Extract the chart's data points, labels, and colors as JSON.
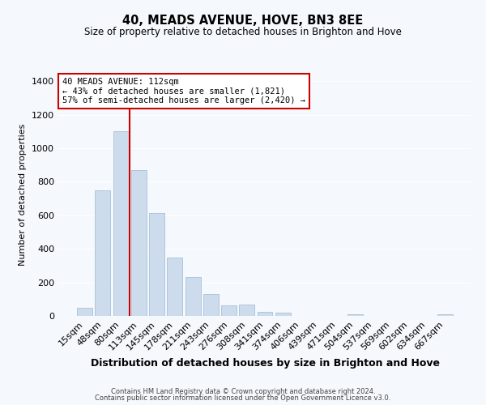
{
  "title": "40, MEADS AVENUE, HOVE, BN3 8EE",
  "subtitle": "Size of property relative to detached houses in Brighton and Hove",
  "xlabel": "Distribution of detached houses by size in Brighton and Hove",
  "ylabel": "Number of detached properties",
  "bar_labels": [
    "15sqm",
    "48sqm",
    "80sqm",
    "113sqm",
    "145sqm",
    "178sqm",
    "211sqm",
    "243sqm",
    "276sqm",
    "308sqm",
    "341sqm",
    "374sqm",
    "406sqm",
    "439sqm",
    "471sqm",
    "504sqm",
    "537sqm",
    "569sqm",
    "602sqm",
    "634sqm",
    "667sqm"
  ],
  "bar_values": [
    50,
    750,
    1100,
    870,
    615,
    350,
    230,
    130,
    65,
    70,
    25,
    20,
    0,
    0,
    0,
    10,
    0,
    0,
    0,
    0,
    10
  ],
  "bar_color": "#ccdcec",
  "bar_edge_color": "#a8c0d8",
  "ylim": [
    0,
    1450
  ],
  "yticks": [
    0,
    200,
    400,
    600,
    800,
    1000,
    1200,
    1400
  ],
  "vline_index": 2.5,
  "vline_color": "#cc0000",
  "annotation_title": "40 MEADS AVENUE: 112sqm",
  "annotation_line1": "← 43% of detached houses are smaller (1,821)",
  "annotation_line2": "57% of semi-detached houses are larger (2,420) →",
  "annotation_box_facecolor": "#ffffff",
  "annotation_box_edgecolor": "#cc0000",
  "footer1": "Contains HM Land Registry data © Crown copyright and database right 2024.",
  "footer2": "Contains public sector information licensed under the Open Government Licence v3.0.",
  "fig_facecolor": "#f5f8fc",
  "axes_facecolor": "#f5f8fc",
  "grid_color": "#ffffff"
}
